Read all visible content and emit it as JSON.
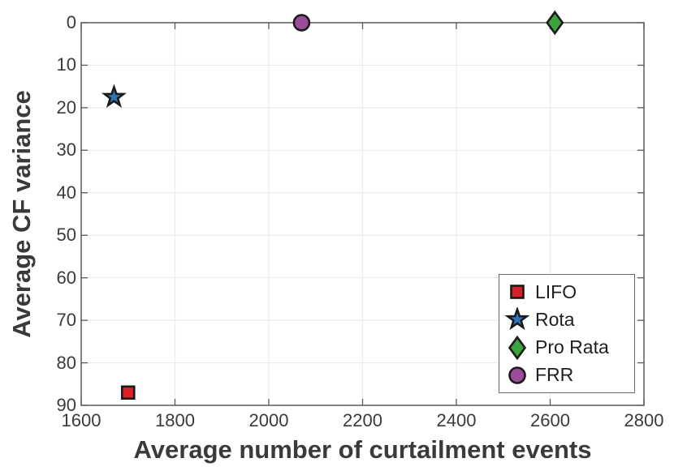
{
  "chart_data": {
    "type": "scatter",
    "title": "",
    "xlabel": "Average number of curtailment events",
    "ylabel": "Average CF variance",
    "xlim": [
      1600,
      2800
    ],
    "ylim": [
      0,
      90
    ],
    "y_axis_reversed": true,
    "x_ticks": [
      1600,
      1800,
      2000,
      2200,
      2400,
      2600,
      2800
    ],
    "y_ticks": [
      0,
      10,
      20,
      30,
      40,
      50,
      60,
      70,
      80,
      90
    ],
    "grid": true,
    "legend_position": "bottom-right",
    "series": [
      {
        "name": "LIFO",
        "marker": "square",
        "color": "#DA2128",
        "points": [
          [
            1700,
            87
          ]
        ]
      },
      {
        "name": "Rota",
        "marker": "star",
        "color": "#2E75B6",
        "points": [
          [
            1670,
            17.5
          ]
        ]
      },
      {
        "name": "Pro Rata",
        "marker": "diamond",
        "color": "#3DA43D",
        "points": [
          [
            2610,
            0
          ]
        ]
      },
      {
        "name": "FRR",
        "marker": "circle",
        "color": "#9B4D9B",
        "points": [
          [
            2070,
            0
          ]
        ]
      }
    ]
  },
  "style": {
    "background": "#ffffff",
    "text_color": "#3a3a3a",
    "legend_text_color": "#1f1f1f",
    "spine_color": "#5a5a5a",
    "grid_color": "#ebebeb",
    "marker_edge_color": "#1a1a1a",
    "legend_border_color": "#6b6b6b"
  }
}
